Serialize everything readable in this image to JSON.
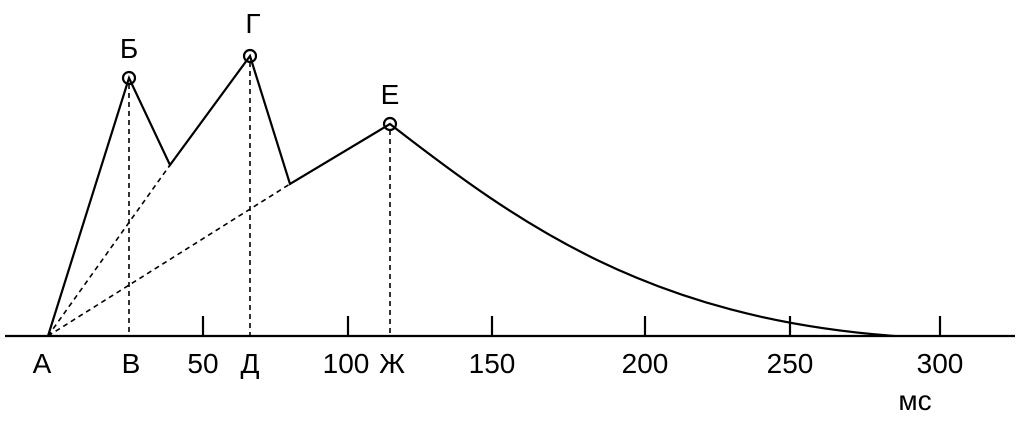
{
  "axis": {
    "labels": [
      "А",
      "В",
      "50",
      "Д",
      "100",
      "Ж",
      "150",
      "200",
      "250",
      "300"
    ],
    "unit": "мс"
  },
  "points": [
    {
      "label": "Б"
    },
    {
      "label": "Г"
    },
    {
      "label": "Е"
    }
  ]
}
